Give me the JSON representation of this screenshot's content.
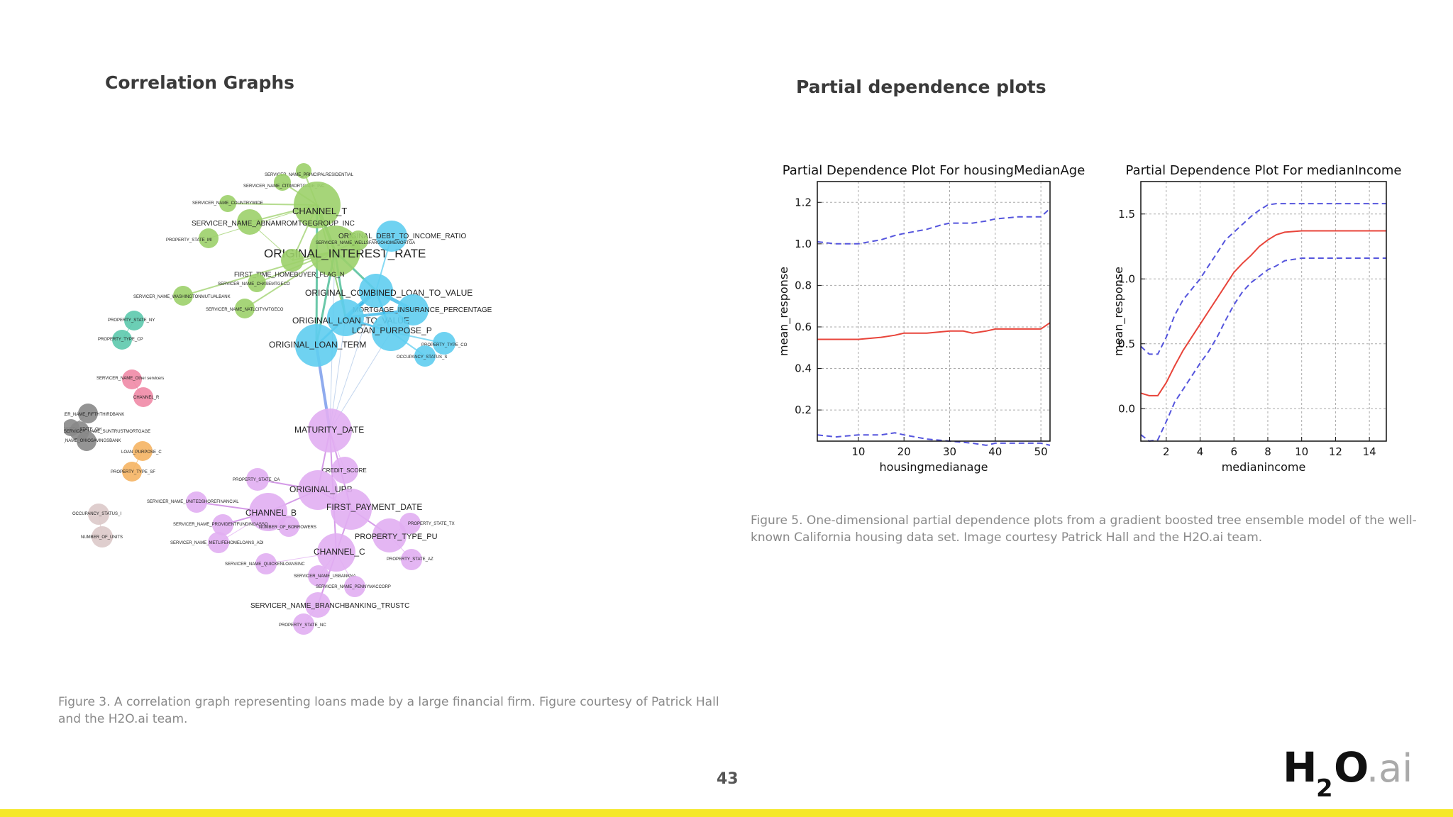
{
  "slide": {
    "left_title": "Correlation Graphs",
    "right_title": "Partial dependence plots",
    "left_caption": "Figure 3. A correlation graph representing loans made by a large financial firm. Figure courtesy of Patrick Hall and the H2O.ai team.",
    "right_caption": "Figure 5. One-dimensional partial dependence plots from a gradient boosted tree ensemble model of the well-known California housing data set. Image courtesy Patrick Hall and the H2O.ai team.",
    "page_number": "43",
    "logo_text": "H2O.ai",
    "accent_color": "#f5e82a"
  },
  "graph": {
    "nodes": [
      {
        "label": "SERVICER_NAME_PRINCIPALRESIDENTIAL",
        "color": "#9cd06a"
      },
      {
        "label": "SERVICER_NAME_CITIMORTGAGE_INC",
        "color": "#9cd06a"
      },
      {
        "label": "SERVICER_NAME_COUNTRYWIDE",
        "color": "#9cd06a"
      },
      {
        "label": "CHANNEL_T",
        "color": "#9cd06a"
      },
      {
        "label": "SERVICER_NAME_ABNAMROMTGEGROUP_INC",
        "color": "#9cd06a"
      },
      {
        "label": "PROPERTY_STATE_MI",
        "color": "#9cd06a"
      },
      {
        "label": "ORIGINAL_INTEREST_RATE",
        "color": "#9cd06a"
      },
      {
        "label": "FIRST_TIME_HOMEBUYER_FLAG_N",
        "color": "#9cd06a"
      },
      {
        "label": "SERVICER_NAME_CHASEMTGECO",
        "color": "#9cd06a"
      },
      {
        "label": "SERVICER_NAME_WASHINGTONMUTUALBANK",
        "color": "#9cd06a"
      },
      {
        "label": "SERVICER_NAME_NATLCITYMTGECO",
        "color": "#9cd06a"
      },
      {
        "label": "ORIGINAL_DEBT_TO_INCOME_RATIO",
        "color": "#5fcdf0"
      },
      {
        "label": "SERVICER_NAME_WELLSFARGOHOMEMORTGA",
        "color": "#9cd06a"
      },
      {
        "label": "ORIGINAL_COMBINED_LOAN_TO_VALUE",
        "color": "#5fcdf0"
      },
      {
        "label": "MORTGAGE_INSURANCE_PERCENTAGE",
        "color": "#5fcdf0"
      },
      {
        "label": "ORIGINAL_LOAN_TO_VALUE",
        "color": "#5fcdf0"
      },
      {
        "label": "LOAN_PURPOSE_P",
        "color": "#5fcdf0"
      },
      {
        "label": "ORIGINAL_LOAN_TERM",
        "color": "#5fcdf0"
      },
      {
        "label": "PROPERTY_TYPE_CO",
        "color": "#5fcdf0"
      },
      {
        "label": "OCCUPANCY_STATUS_S",
        "color": "#5fcdf0"
      },
      {
        "label": "PROPERTY_STATE_NY",
        "color": "#5cc9ad"
      },
      {
        "label": "PROPERTY_TYPE_CP",
        "color": "#5cc9ad"
      },
      {
        "label": "SERVICER_NAME_Other servicers",
        "color": "#f08aa6"
      },
      {
        "label": "CHANNEL_R",
        "color": "#f08aa6"
      },
      {
        "label": "SERVICER_NAME_FIFTHTHIRDBANK",
        "color": "#888888"
      },
      {
        "label": "PROPERTY_STATE_OH",
        "color": "#888888"
      },
      {
        "label": "SERVICER_NAME_SUNTRUSTMORTGAGE",
        "color": "#888888"
      },
      {
        "label": "SERVICER_NAME_OHIOSAVINGSBANK",
        "color": "#888888"
      },
      {
        "label": "LOAN_PURPOSE_C",
        "color": "#f5b463"
      },
      {
        "label": "PROPERTY_TYPE_SF",
        "color": "#f5b463"
      },
      {
        "label": "OCCUPANCY_STATUS_I",
        "color": "#dcc9c9"
      },
      {
        "label": "NUMBER_OF_UNITS",
        "color": "#dcc9c9"
      },
      {
        "label": "MATURITY_DATE",
        "color": "#e1aef2"
      },
      {
        "label": "CREDIT_SCORE",
        "color": "#e1aef2"
      },
      {
        "label": "PROPERTY_STATE_CA",
        "color": "#e1aef2"
      },
      {
        "label": "ORIGINAL_UPB",
        "color": "#e1aef2"
      },
      {
        "label": "SERVICER_NAME_UNITEDSHOREFINANCIAL",
        "color": "#e1aef2"
      },
      {
        "label": "CHANNEL_B",
        "color": "#e1aef2"
      },
      {
        "label": "FIRST_PAYMENT_DATE",
        "color": "#e1aef2"
      },
      {
        "label": "SERVICER_NAME_PROVIDENTFUNDINGASSO",
        "color": "#e1aef2"
      },
      {
        "label": "NUMBER_OF_BORROWERS",
        "color": "#e1aef2"
      },
      {
        "label": "PROPERTY_STATE_TX",
        "color": "#e1aef2"
      },
      {
        "label": "PROPERTY_TYPE_PU",
        "color": "#e1aef2"
      },
      {
        "label": "SERVICER_NAME_METLIFEHOMELOANS_ADI",
        "color": "#e1aef2"
      },
      {
        "label": "CHANNEL_C",
        "color": "#e1aef2"
      },
      {
        "label": "PROPERTY_STATE_AZ",
        "color": "#e1aef2"
      },
      {
        "label": "SERVICER_NAME_QUICKENLOANSINC",
        "color": "#e1aef2"
      },
      {
        "label": "SERVICER_NAME_USBANKNA",
        "color": "#e1aef2"
      },
      {
        "label": "SERVICER_NAME_PENNYMACCORP",
        "color": "#e1aef2"
      },
      {
        "label": "SERVICER_NAME_BRANCHBANKING_TRUSTC",
        "color": "#e1aef2"
      },
      {
        "label": "PROPERTY_STATE_NC",
        "color": "#e1aef2"
      }
    ]
  },
  "chart_data": [
    {
      "type": "line",
      "title": "Partial Dependence Plot For housingMedianAge",
      "xlabel": "housingmedianage",
      "ylabel": "mean_response",
      "xlim": [
        1,
        52
      ],
      "ylim": [
        0.05,
        1.3
      ],
      "xticks": [
        10,
        20,
        30,
        40,
        50
      ],
      "yticks": [
        0.2,
        0.4,
        0.6,
        0.8,
        1.0,
        1.2
      ],
      "grid": true,
      "series": [
        {
          "style": "solid",
          "color": "#e8443a",
          "x": [
            1,
            5,
            10,
            15,
            18,
            20,
            25,
            30,
            33,
            35,
            38,
            40,
            45,
            50,
            52
          ],
          "y": [
            0.54,
            0.54,
            0.54,
            0.55,
            0.56,
            0.57,
            0.57,
            0.58,
            0.58,
            0.57,
            0.58,
            0.59,
            0.59,
            0.59,
            0.62
          ]
        },
        {
          "style": "dashed",
          "color": "#5555dd",
          "x": [
            1,
            5,
            10,
            15,
            18,
            20,
            25,
            28,
            30,
            35,
            38,
            40,
            45,
            50,
            52
          ],
          "y": [
            1.01,
            1.0,
            1.0,
            1.02,
            1.04,
            1.05,
            1.07,
            1.09,
            1.1,
            1.1,
            1.11,
            1.12,
            1.13,
            1.13,
            1.17
          ]
        },
        {
          "style": "dashed",
          "color": "#5555dd",
          "x": [
            1,
            5,
            10,
            15,
            18,
            20,
            25,
            30,
            35,
            38,
            40,
            45,
            50,
            52
          ],
          "y": [
            0.08,
            0.07,
            0.08,
            0.08,
            0.09,
            0.08,
            0.06,
            0.05,
            0.04,
            0.03,
            0.04,
            0.04,
            0.04,
            0.03
          ]
        }
      ]
    },
    {
      "type": "line",
      "title": "Partial Dependence Plot For medianIncome",
      "xlabel": "medianincome",
      "ylabel": "mean_response",
      "xlim": [
        0.5,
        15
      ],
      "ylim": [
        -0.25,
        1.75
      ],
      "xticks": [
        2,
        4,
        6,
        8,
        10,
        12,
        14
      ],
      "yticks": [
        0.0,
        0.5,
        1.0,
        1.5
      ],
      "grid": true,
      "series": [
        {
          "style": "solid",
          "color": "#e8443a",
          "x": [
            0.5,
            1,
            1.5,
            2,
            2.5,
            3,
            3.5,
            4,
            4.5,
            5,
            5.5,
            6,
            6.5,
            7,
            7.5,
            8,
            8.5,
            9,
            10,
            11,
            12,
            13,
            14,
            15
          ],
          "y": [
            0.12,
            0.1,
            0.1,
            0.2,
            0.33,
            0.45,
            0.55,
            0.65,
            0.75,
            0.85,
            0.95,
            1.05,
            1.12,
            1.18,
            1.25,
            1.3,
            1.34,
            1.36,
            1.37,
            1.37,
            1.37,
            1.37,
            1.37,
            1.37
          ]
        },
        {
          "style": "dashed",
          "color": "#5555dd",
          "x": [
            0.5,
            1,
            1.5,
            2,
            2.5,
            3,
            3.5,
            4,
            4.5,
            5,
            5.5,
            6,
            6.5,
            7,
            7.5,
            8,
            8.5,
            9,
            10,
            11,
            12,
            13,
            14,
            15
          ],
          "y": [
            0.48,
            0.42,
            0.42,
            0.55,
            0.72,
            0.84,
            0.92,
            1.0,
            1.1,
            1.2,
            1.3,
            1.36,
            1.42,
            1.48,
            1.53,
            1.57,
            1.58,
            1.58,
            1.58,
            1.58,
            1.58,
            1.58,
            1.58,
            1.58
          ]
        },
        {
          "style": "dashed",
          "color": "#5555dd",
          "x": [
            0.5,
            1,
            1.5,
            2,
            2.5,
            3,
            3.5,
            4,
            4.5,
            5,
            5.5,
            6,
            6.5,
            7,
            7.5,
            8,
            8.5,
            9,
            10,
            11,
            12,
            13,
            14,
            15
          ],
          "y": [
            -0.2,
            -0.25,
            -0.24,
            -0.1,
            0.05,
            0.15,
            0.25,
            0.35,
            0.44,
            0.55,
            0.68,
            0.8,
            0.9,
            0.97,
            1.02,
            1.07,
            1.1,
            1.14,
            1.16,
            1.16,
            1.16,
            1.16,
            1.16,
            1.16
          ]
        }
      ]
    }
  ]
}
